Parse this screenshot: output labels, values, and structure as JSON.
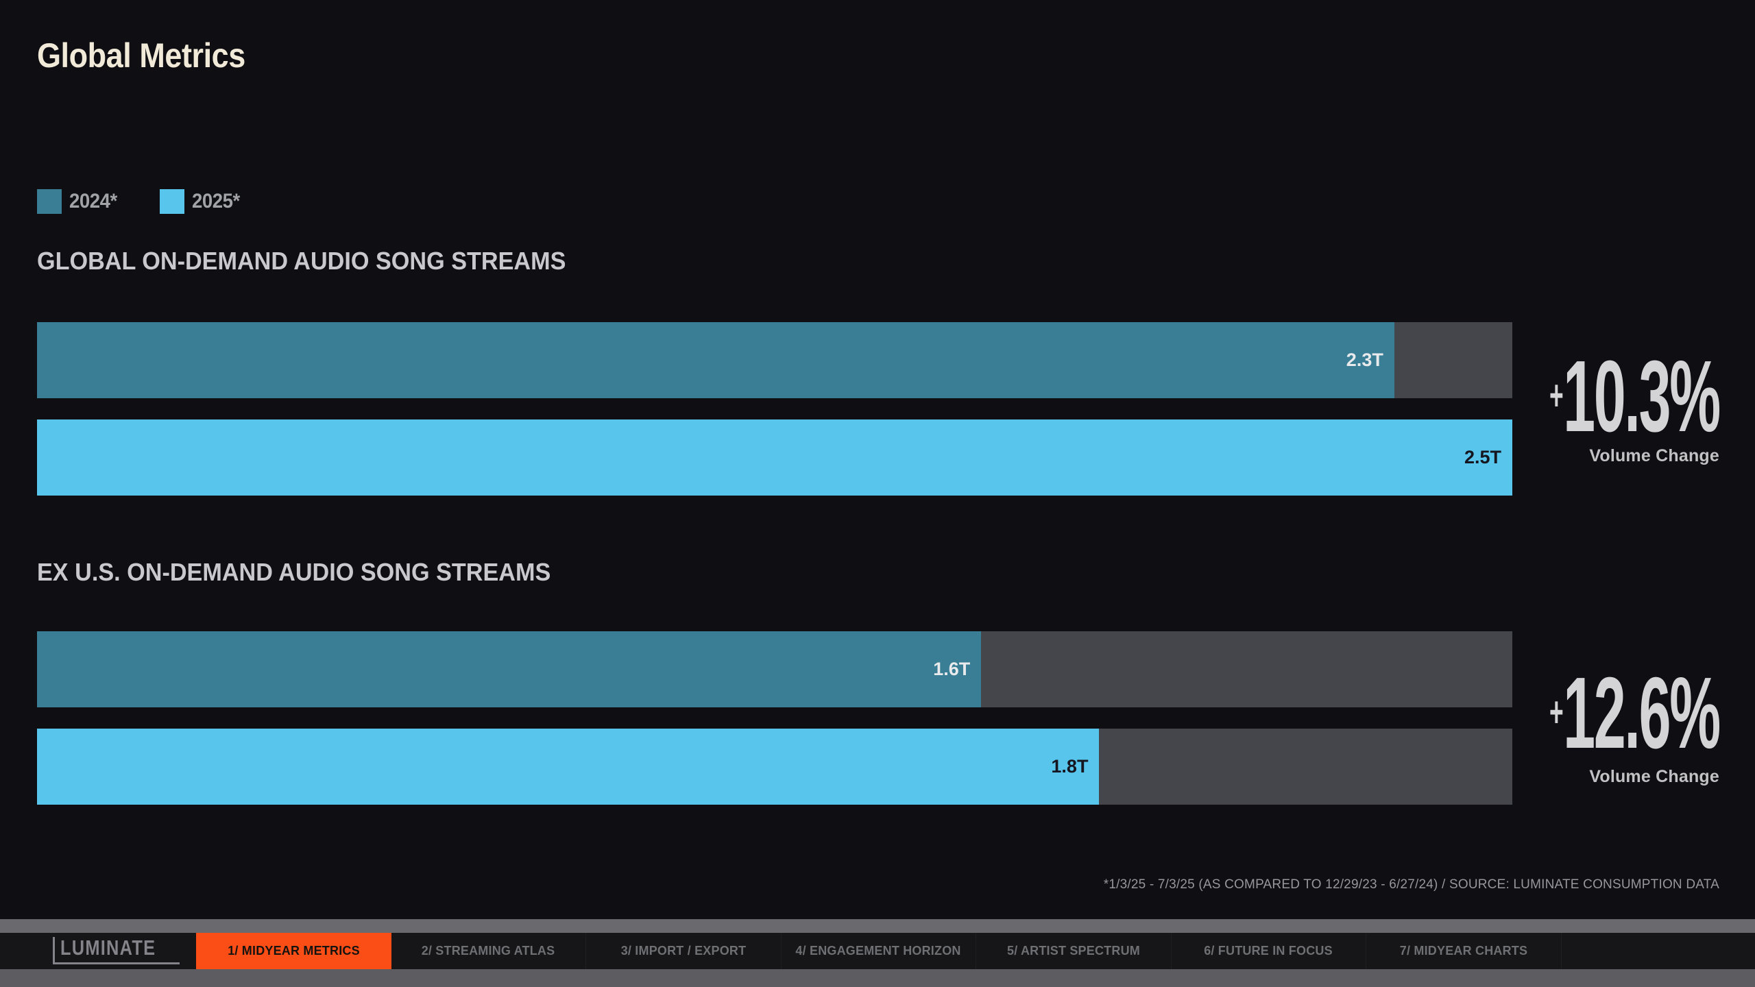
{
  "page": {
    "title": "Global Metrics"
  },
  "colors": {
    "background": "#0F0F13",
    "bar_2024": "#3A7E96",
    "bar_2025": "#57C5EC",
    "bar_track": "#45464B",
    "accent_orange": "#FB4E17",
    "title_cream": "#F1EAD9"
  },
  "legend": {
    "items": [
      {
        "label": "2024*",
        "color": "#3A7E96"
      },
      {
        "label": "2025*",
        "color": "#57C5EC"
      }
    ]
  },
  "charts": [
    {
      "heading": "GLOBAL ON-DEMAND AUDIO SONG STREAMS",
      "bars": [
        {
          "series": "2024*",
          "value_label": "2.3T",
          "value_trillions": 2.3,
          "fill_pct": 92,
          "color": "#3A7E96",
          "label_color": "#E9EAEC"
        },
        {
          "series": "2025*",
          "value_label": "2.5T",
          "value_trillions": 2.5,
          "fill_pct": 100,
          "color": "#57C5EC",
          "label_color": "#15161F"
        }
      ],
      "change": {
        "sign": "+",
        "number": "10.3%",
        "caption": "Volume Change"
      }
    },
    {
      "heading": "EX U.S. ON-DEMAND AUDIO SONG STREAMS",
      "bars": [
        {
          "series": "2024*",
          "value_label": "1.6T",
          "value_trillions": 1.6,
          "fill_pct": 64,
          "color": "#3A7E96",
          "label_color": "#E9EAEC"
        },
        {
          "series": "2025*",
          "value_label": "1.8T",
          "value_trillions": 1.8,
          "fill_pct": 72,
          "color": "#57C5EC",
          "label_color": "#15161F"
        }
      ],
      "change": {
        "sign": "+",
        "number": "12.6%",
        "caption": "Volume Change"
      }
    }
  ],
  "footnote": "*1/3/25 - 7/3/25 (AS COMPARED TO 12/29/23 - 6/27/24)  /  SOURCE: LUMINATE CONSUMPTION DATA",
  "nav": {
    "logo": "LUMINATE",
    "active_bg": "#FB4E17",
    "tabs": [
      {
        "label": "1/ MIDYEAR METRICS",
        "active": true
      },
      {
        "label": "2/ STREAMING ATLAS",
        "active": false
      },
      {
        "label": "3/ IMPORT / EXPORT",
        "active": false
      },
      {
        "label": "4/ ENGAGEMENT HORIZON",
        "active": false
      },
      {
        "label": "5/ ARTIST SPECTRUM",
        "active": false
      },
      {
        "label": "6/ FUTURE IN FOCUS",
        "active": false
      },
      {
        "label": "7/ MIDYEAR CHARTS",
        "active": false
      }
    ]
  },
  "chart_data": [
    {
      "type": "bar",
      "orientation": "horizontal",
      "title": "GLOBAL ON-DEMAND AUDIO SONG STREAMS",
      "categories": [
        "2024*",
        "2025*"
      ],
      "values": [
        2.3,
        2.5
      ],
      "value_labels": [
        "2.3T",
        "2.5T"
      ],
      "unit": "trillion on-demand audio song streams",
      "xlim": [
        0,
        2.5
      ],
      "grid": false,
      "legend_position": "top-left",
      "series_colors": [
        "#3A7E96",
        "#57C5EC"
      ],
      "annotation": "+10.3% Volume Change"
    },
    {
      "type": "bar",
      "orientation": "horizontal",
      "title": "EX U.S. ON-DEMAND AUDIO SONG STREAMS",
      "categories": [
        "2024*",
        "2025*"
      ],
      "values": [
        1.6,
        1.8
      ],
      "value_labels": [
        "1.6T",
        "1.8T"
      ],
      "unit": "trillion on-demand audio song streams",
      "xlim": [
        0,
        2.5
      ],
      "grid": false,
      "legend_position": "top-left",
      "series_colors": [
        "#3A7E96",
        "#57C5EC"
      ],
      "annotation": "+12.6% Volume Change"
    }
  ]
}
